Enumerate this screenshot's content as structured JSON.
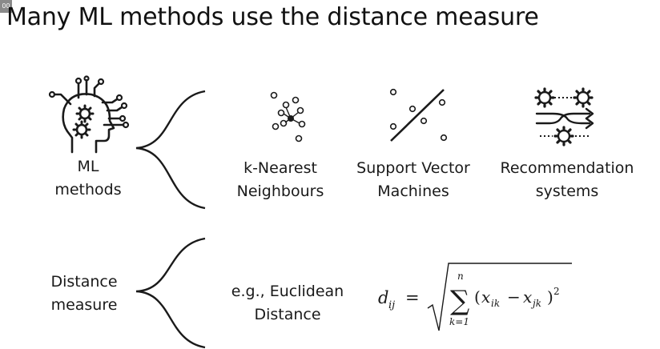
{
  "slide": {
    "title": "Many ML methods use the distance measure",
    "corner_badge": "00",
    "root": {
      "line1": "ML",
      "line2": "methods",
      "icon": "ai-head-circuit-icon"
    },
    "methods": [
      {
        "line1": "k-Nearest",
        "line2": "Neighbours",
        "icon": "knn-scatter-icon"
      },
      {
        "line1": "Support Vector",
        "line2": "Machines",
        "icon": "svm-separator-icon"
      },
      {
        "line1": "Recommendation",
        "line2": "systems",
        "icon": "gears-flow-icon"
      }
    ],
    "distance": {
      "line1": "Distance",
      "line2": "measure",
      "example_line1": "e.g., Euclidean",
      "example_line2": "Distance",
      "formula": {
        "lhs_base": "d",
        "lhs_sub": "ij",
        "equals": "=",
        "sum_upper": "n",
        "sum_lower": "k=1",
        "sigma": "∑",
        "term_open": "(",
        "x1": "x",
        "x1_sub": "ik",
        "minus": "−",
        "x2": "x",
        "x2_sub": "jk",
        "term_close": ")",
        "power": "2"
      }
    },
    "colors": {
      "text": "#1a1a1a",
      "line": "#1a1a1a",
      "background": "#ffffff"
    }
  }
}
